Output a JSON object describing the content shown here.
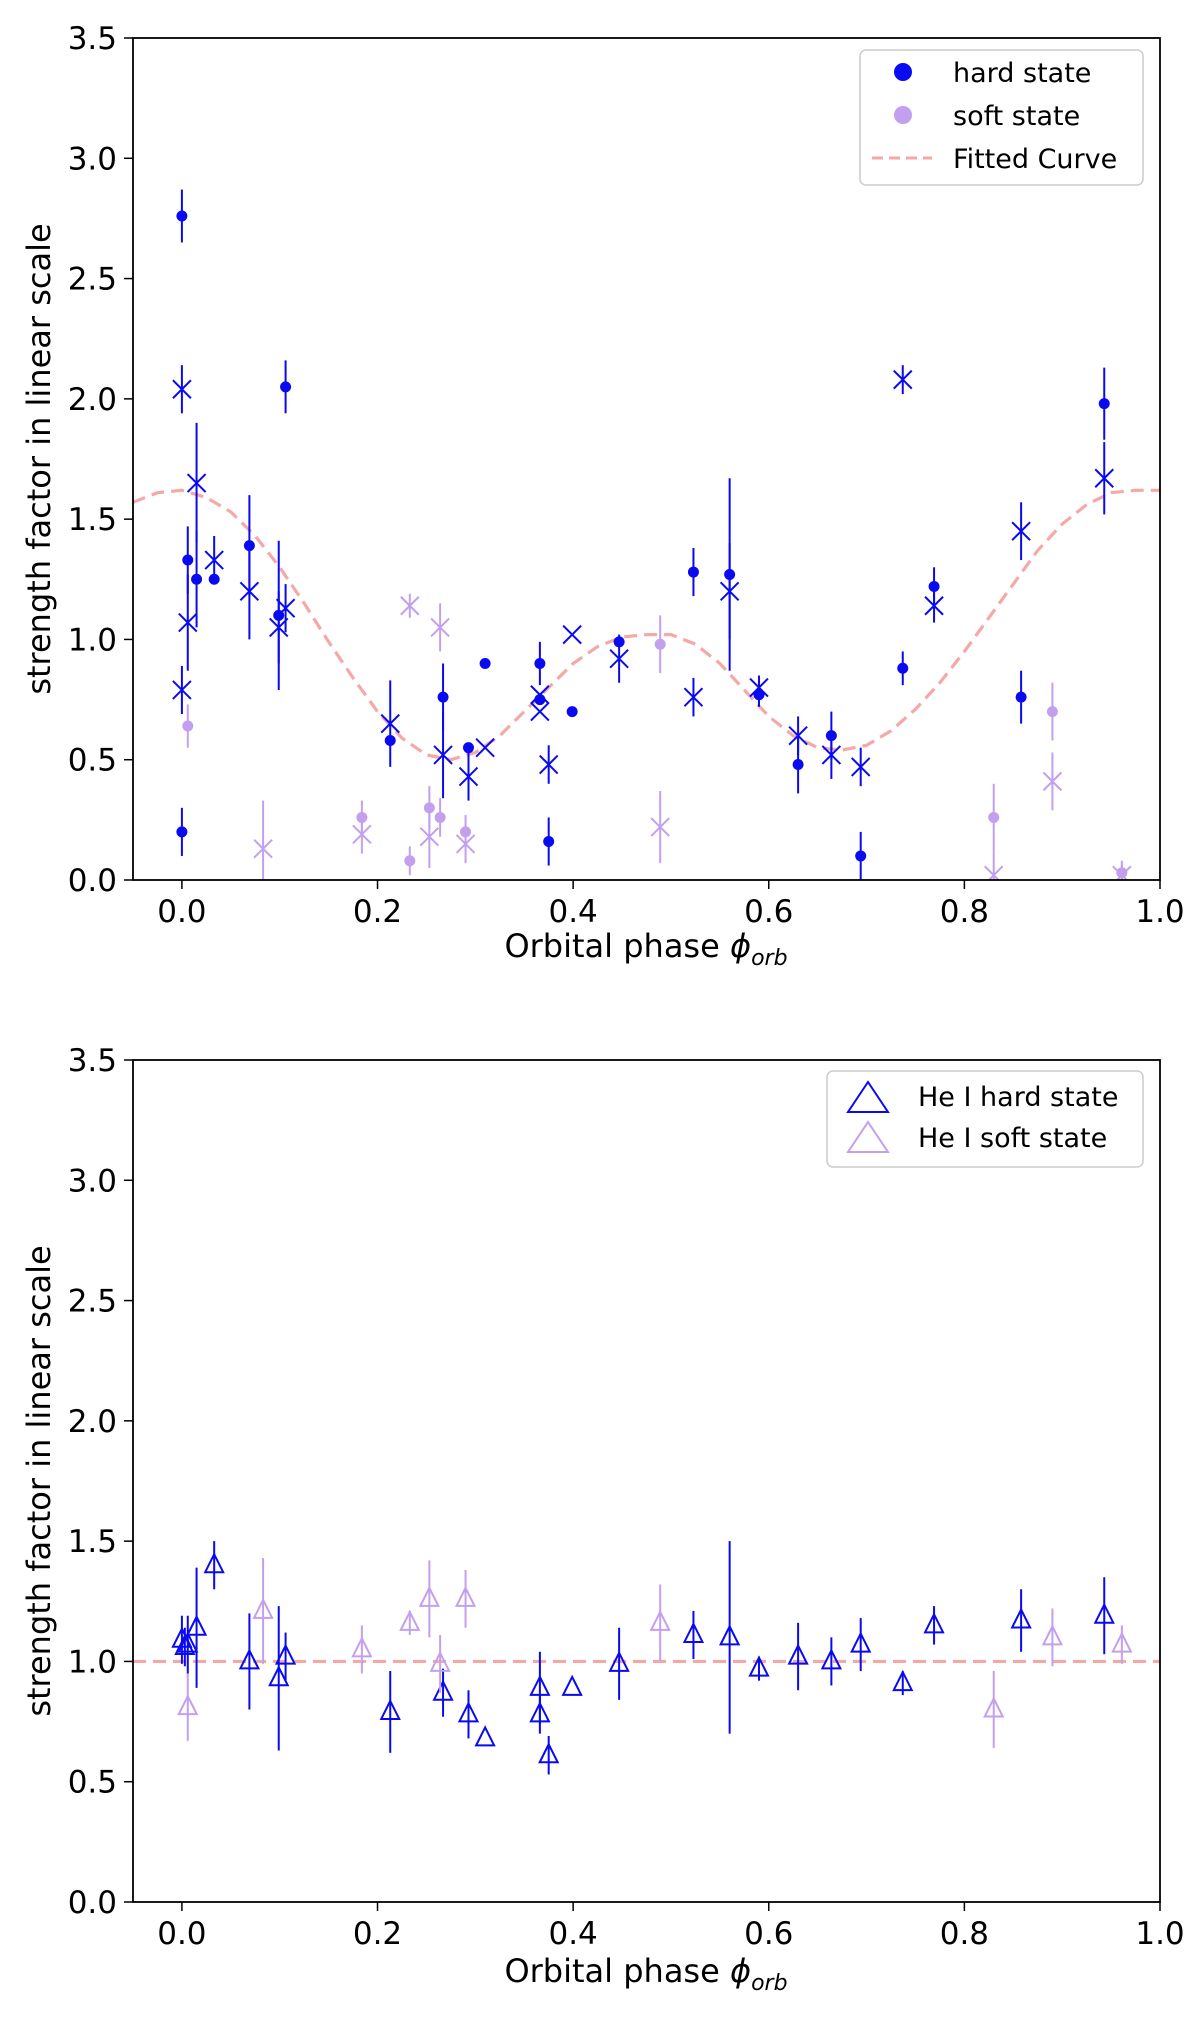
{
  "colors": {
    "hard": "#0a0af0",
    "soft": "#c3a0ee",
    "fit": "#f5a9a6"
  },
  "chart_data": [
    {
      "type": "scatter",
      "xlabel": "Orbital phase",
      "xlabel_symbol": "ϕ",
      "xlabel_sub": "orb",
      "ylabel": "strength factor in linear scale",
      "xlim": [
        -0.05,
        1.0
      ],
      "ylim": [
        0.0,
        3.5
      ],
      "xticks": [
        "0.0",
        "0.2",
        "0.4",
        "0.6",
        "0.8",
        "1.0"
      ],
      "yticks": [
        "0.0",
        "0.5",
        "1.0",
        "1.5",
        "2.0",
        "2.5",
        "3.0",
        "3.5"
      ],
      "legend_position": "top-right",
      "legend": [
        {
          "label": "hard state",
          "marker": "dot",
          "series": "hard"
        },
        {
          "label": "soft state",
          "marker": "dot",
          "series": "soft"
        },
        {
          "label": "Fitted Curve",
          "marker": "dash",
          "series": "fit"
        }
      ],
      "series": [
        {
          "name": "hard state",
          "marker": "dot",
          "color": "hard",
          "points": [
            {
              "x": 0.0,
              "y": 2.76,
              "err": 0.11
            },
            {
              "x": 0.0,
              "y": 0.2,
              "err": 0.1
            },
            {
              "x": 0.006,
              "y": 1.33,
              "err": 0.14
            },
            {
              "x": 0.015,
              "y": 1.25,
              "err": 0.2
            },
            {
              "x": 0.033,
              "y": 1.25,
              "err": 0.0
            },
            {
              "x": 0.069,
              "y": 1.39,
              "err": 0.21
            },
            {
              "x": 0.099,
              "y": 1.1,
              "err": 0.31
            },
            {
              "x": 0.106,
              "y": 2.05,
              "err": 0.11
            },
            {
              "x": 0.213,
              "y": 0.58,
              "err": 0.0
            },
            {
              "x": 0.267,
              "y": 0.76,
              "err": 0.14
            },
            {
              "x": 0.293,
              "y": 0.55,
              "err": 0.0
            },
            {
              "x": 0.31,
              "y": 0.9,
              "err": 0.0
            },
            {
              "x": 0.366,
              "y": 0.9,
              "err": 0.09
            },
            {
              "x": 0.366,
              "y": 0.75,
              "err": 0.0
            },
            {
              "x": 0.375,
              "y": 0.16,
              "err": 0.1
            },
            {
              "x": 0.399,
              "y": 0.7,
              "err": 0.0
            },
            {
              "x": 0.447,
              "y": 0.99,
              "err": 0.0
            },
            {
              "x": 0.523,
              "y": 1.28,
              "err": 0.1
            },
            {
              "x": 0.56,
              "y": 1.27,
              "err": 0.4
            },
            {
              "x": 0.59,
              "y": 0.77,
              "err": 0.05
            },
            {
              "x": 0.63,
              "y": 0.48,
              "err": 0.12
            },
            {
              "x": 0.664,
              "y": 0.6,
              "err": 0.1
            },
            {
              "x": 0.694,
              "y": 0.1,
              "err": 0.1
            },
            {
              "x": 0.737,
              "y": 0.88,
              "err": 0.07
            },
            {
              "x": 0.769,
              "y": 1.22,
              "err": 0.08
            },
            {
              "x": 0.858,
              "y": 0.76,
              "err": 0.11
            },
            {
              "x": 0.943,
              "y": 1.98,
              "err": 0.15
            }
          ]
        },
        {
          "name": "hard state",
          "marker": "x",
          "color": "hard",
          "points": [
            {
              "x": 0.0,
              "y": 2.04,
              "err": 0.1
            },
            {
              "x": 0.0,
              "y": 0.79,
              "err": 0.1
            },
            {
              "x": 0.006,
              "y": 1.07,
              "err": 0.2
            },
            {
              "x": 0.015,
              "y": 1.65,
              "err": 0.25
            },
            {
              "x": 0.033,
              "y": 1.33,
              "err": 0.1
            },
            {
              "x": 0.069,
              "y": 1.2,
              "err": 0.2
            },
            {
              "x": 0.099,
              "y": 1.05,
              "err": 0.15
            },
            {
              "x": 0.106,
              "y": 1.13,
              "err": 0.1
            },
            {
              "x": 0.213,
              "y": 0.65,
              "err": 0.18
            },
            {
              "x": 0.267,
              "y": 0.52,
              "err": 0.18
            },
            {
              "x": 0.293,
              "y": 0.43,
              "err": 0.1
            },
            {
              "x": 0.31,
              "y": 0.55,
              "err": 0.0
            },
            {
              "x": 0.366,
              "y": 0.77,
              "err": 0.0
            },
            {
              "x": 0.366,
              "y": 0.7,
              "err": 0.0
            },
            {
              "x": 0.375,
              "y": 0.48,
              "err": 0.08
            },
            {
              "x": 0.399,
              "y": 1.02,
              "err": 0.0
            },
            {
              "x": 0.447,
              "y": 0.92,
              "err": 0.1
            },
            {
              "x": 0.523,
              "y": 0.76,
              "err": 0.08
            },
            {
              "x": 0.56,
              "y": 1.2,
              "err": 0.2
            },
            {
              "x": 0.59,
              "y": 0.8,
              "err": 0.05
            },
            {
              "x": 0.63,
              "y": 0.6,
              "err": 0.08
            },
            {
              "x": 0.664,
              "y": 0.52,
              "err": 0.1
            },
            {
              "x": 0.694,
              "y": 0.47,
              "err": 0.08
            },
            {
              "x": 0.737,
              "y": 2.08,
              "err": 0.06
            },
            {
              "x": 0.769,
              "y": 1.14,
              "err": 0.07
            },
            {
              "x": 0.858,
              "y": 1.45,
              "err": 0.12
            },
            {
              "x": 0.943,
              "y": 1.67,
              "err": 0.15
            }
          ]
        },
        {
          "name": "soft state",
          "marker": "dot",
          "color": "soft",
          "points": [
            {
              "x": 0.006,
              "y": 0.64,
              "err": 0.09
            },
            {
              "x": 0.184,
              "y": 0.26,
              "err": 0.07
            },
            {
              "x": 0.233,
              "y": 0.08,
              "err": 0.06
            },
            {
              "x": 0.253,
              "y": 0.3,
              "err": 0.09
            },
            {
              "x": 0.264,
              "y": 0.26,
              "err": 0.08
            },
            {
              "x": 0.29,
              "y": 0.2,
              "err": 0.07
            },
            {
              "x": 0.489,
              "y": 0.98,
              "err": 0.12
            },
            {
              "x": 0.83,
              "y": 0.26,
              "err": 0.14
            },
            {
              "x": 0.89,
              "y": 0.7,
              "err": 0.12
            },
            {
              "x": 0.961,
              "y": 0.03,
              "err": 0.05
            }
          ]
        },
        {
          "name": "soft state",
          "marker": "x",
          "color": "soft",
          "points": [
            {
              "x": 0.083,
              "y": 0.13,
              "err": 0.2
            },
            {
              "x": 0.184,
              "y": 0.19,
              "err": 0.08
            },
            {
              "x": 0.233,
              "y": 1.14,
              "err": 0.05
            },
            {
              "x": 0.253,
              "y": 0.18,
              "err": 0.13
            },
            {
              "x": 0.264,
              "y": 1.05,
              "err": 0.1
            },
            {
              "x": 0.29,
              "y": 0.15,
              "err": 0.08
            },
            {
              "x": 0.489,
              "y": 0.22,
              "err": 0.15
            },
            {
              "x": 0.83,
              "y": 0.02,
              "err": 0.1
            },
            {
              "x": 0.89,
              "y": 0.41,
              "err": 0.12
            },
            {
              "x": 0.961,
              "y": 0.02,
              "err": 0.05
            }
          ]
        }
      ],
      "fitted_curve": {
        "name": "Fitted Curve",
        "style": "dashed",
        "x": [
          -0.05,
          -0.025,
          0.0,
          0.025,
          0.05,
          0.075,
          0.1,
          0.125,
          0.15,
          0.175,
          0.2,
          0.225,
          0.25,
          0.275,
          0.3,
          0.325,
          0.35,
          0.375,
          0.4,
          0.425,
          0.45,
          0.475,
          0.5,
          0.525,
          0.55,
          0.575,
          0.6,
          0.625,
          0.65,
          0.675,
          0.7,
          0.725,
          0.75,
          0.775,
          0.8,
          0.825,
          0.85,
          0.875,
          0.9,
          0.925,
          0.95,
          0.975,
          1.0
        ],
        "y": [
          1.57,
          1.61,
          1.62,
          1.59,
          1.53,
          1.43,
          1.3,
          1.15,
          0.99,
          0.84,
          0.7,
          0.59,
          0.52,
          0.5,
          0.53,
          0.6,
          0.7,
          0.8,
          0.9,
          0.97,
          1.01,
          1.02,
          1.02,
          0.98,
          0.9,
          0.79,
          0.68,
          0.6,
          0.55,
          0.54,
          0.56,
          0.62,
          0.71,
          0.82,
          0.95,
          1.09,
          1.23,
          1.37,
          1.48,
          1.56,
          1.61,
          1.62,
          1.62
        ]
      }
    },
    {
      "type": "scatter",
      "xlabel": "Orbital phase",
      "xlabel_symbol": "ϕ",
      "xlabel_sub": "orb",
      "ylabel": "strength factor in linear scale",
      "xlim": [
        -0.05,
        1.0
      ],
      "ylim": [
        0.0,
        3.5
      ],
      "xticks": [
        "0.0",
        "0.2",
        "0.4",
        "0.6",
        "0.8",
        "1.0"
      ],
      "yticks": [
        "0.0",
        "0.5",
        "1.0",
        "1.5",
        "2.0",
        "2.5",
        "3.0",
        "3.5"
      ],
      "legend_position": "top-right",
      "legend": [
        {
          "label": "He I hard state",
          "marker": "triangle",
          "series": "hard"
        },
        {
          "label": "He I soft state",
          "marker": "triangle",
          "series": "soft"
        }
      ],
      "reference_line": {
        "y": 1.0,
        "style": "dashed"
      },
      "series": [
        {
          "name": "He I hard state",
          "marker": "triangle",
          "color": "hard",
          "points": [
            {
              "x": 0.0,
              "y": 1.09,
              "err": 0.1
            },
            {
              "x": 0.003,
              "y": 1.06,
              "err": 0.08
            },
            {
              "x": 0.006,
              "y": 1.07,
              "err": 0.12
            },
            {
              "x": 0.015,
              "y": 1.14,
              "err": 0.25
            },
            {
              "x": 0.033,
              "y": 1.4,
              "err": 0.1
            },
            {
              "x": 0.069,
              "y": 1.0,
              "err": 0.2
            },
            {
              "x": 0.099,
              "y": 0.93,
              "err": 0.3
            },
            {
              "x": 0.106,
              "y": 1.02,
              "err": 0.1
            },
            {
              "x": 0.213,
              "y": 0.79,
              "err": 0.17
            },
            {
              "x": 0.267,
              "y": 0.87,
              "err": 0.1
            },
            {
              "x": 0.293,
              "y": 0.78,
              "err": 0.1
            },
            {
              "x": 0.31,
              "y": 0.68,
              "err": 0.0
            },
            {
              "x": 0.366,
              "y": 0.89,
              "err": 0.15
            },
            {
              "x": 0.366,
              "y": 0.78,
              "err": 0.08
            },
            {
              "x": 0.375,
              "y": 0.61,
              "err": 0.08
            },
            {
              "x": 0.399,
              "y": 0.89,
              "err": 0.0
            },
            {
              "x": 0.447,
              "y": 0.99,
              "err": 0.15
            },
            {
              "x": 0.523,
              "y": 1.11,
              "err": 0.1
            },
            {
              "x": 0.56,
              "y": 1.1,
              "err": 0.4
            },
            {
              "x": 0.59,
              "y": 0.97,
              "err": 0.05
            },
            {
              "x": 0.63,
              "y": 1.02,
              "err": 0.14
            },
            {
              "x": 0.664,
              "y": 1.0,
              "err": 0.1
            },
            {
              "x": 0.694,
              "y": 1.07,
              "err": 0.11
            },
            {
              "x": 0.737,
              "y": 0.91,
              "err": 0.05
            },
            {
              "x": 0.769,
              "y": 1.15,
              "err": 0.08
            },
            {
              "x": 0.858,
              "y": 1.17,
              "err": 0.13
            },
            {
              "x": 0.943,
              "y": 1.19,
              "err": 0.16
            }
          ]
        },
        {
          "name": "He I soft state",
          "marker": "triangle",
          "color": "soft",
          "points": [
            {
              "x": 0.006,
              "y": 0.81,
              "err": 0.14
            },
            {
              "x": 0.083,
              "y": 1.21,
              "err": 0.22
            },
            {
              "x": 0.184,
              "y": 1.05,
              "err": 0.1
            },
            {
              "x": 0.233,
              "y": 1.16,
              "err": 0.05
            },
            {
              "x": 0.253,
              "y": 1.26,
              "err": 0.16
            },
            {
              "x": 0.264,
              "y": 0.99,
              "err": 0.12
            },
            {
              "x": 0.29,
              "y": 1.26,
              "err": 0.12
            },
            {
              "x": 0.489,
              "y": 1.16,
              "err": 0.16
            },
            {
              "x": 0.83,
              "y": 0.8,
              "err": 0.16
            },
            {
              "x": 0.89,
              "y": 1.1,
              "err": 0.12
            },
            {
              "x": 0.961,
              "y": 1.07,
              "err": 0.08
            }
          ]
        }
      ]
    }
  ]
}
